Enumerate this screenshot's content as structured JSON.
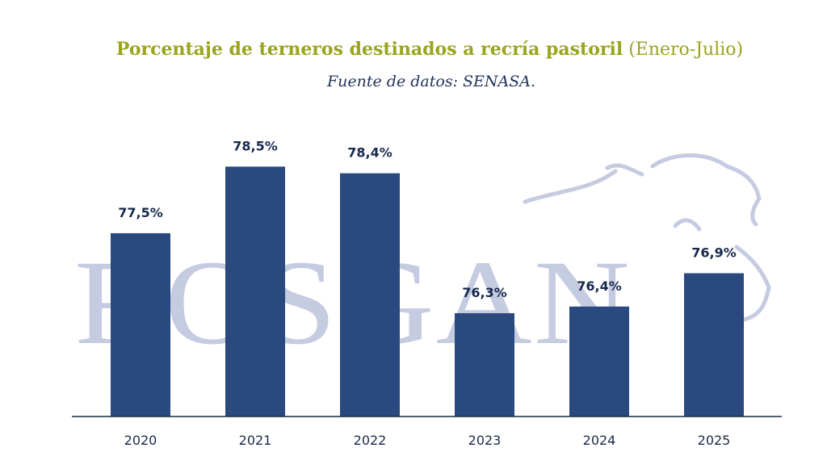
{
  "chart_data": {
    "type": "bar",
    "title": "Porcentaje de terneros destinados a recría pastoril",
    "title_suffix": "(Enero-Julio)",
    "subtitle": "Fuente de datos: SENASA.",
    "categories": [
      "2020",
      "2021",
      "2022",
      "2023",
      "2024",
      "2025"
    ],
    "values": [
      77.5,
      78.5,
      78.4,
      76.3,
      76.4,
      76.9
    ],
    "value_labels": [
      "77,5%",
      "78,5%",
      "78,4%",
      "76,3%",
      "76,4%",
      "76,9%"
    ],
    "xlabel": "",
    "ylabel": "",
    "ylim": [
      74.75,
      78.65
    ],
    "grid": false,
    "legend": "none",
    "colors": {
      "bar": "#2a4a7f",
      "title": "#9aa41c",
      "subtitle": "#22335a",
      "watermark": "#c5cbe0"
    }
  },
  "watermark": {
    "text": "ROSGAN",
    "icon": "cow-head-icon"
  }
}
